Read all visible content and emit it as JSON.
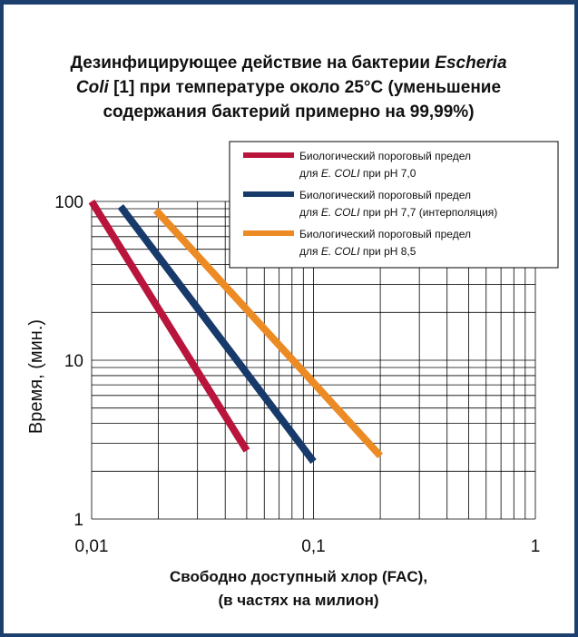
{
  "chart_data": {
    "type": "line",
    "title_lines": [
      [
        {
          "t": "Дезинфицирующее действие на бактерии ",
          "i": false
        },
        {
          "t": "Escheria",
          "i": true
        }
      ],
      [
        {
          "t": "Coli",
          "i": true
        },
        {
          "t": " [1] при температуре около 25°C (уменьшение",
          "i": false
        }
      ],
      [
        {
          "t": "содержания бактерий примерно на 99,99%)",
          "i": false
        }
      ]
    ],
    "xlabel_lines": [
      "Свободно доступный хлор (FAC),",
      "(в частях на милион)"
    ],
    "ylabel": "Время, (мин.)",
    "x_scale": "log",
    "y_scale": "log",
    "xlim": [
      0.01,
      1
    ],
    "ylim": [
      1,
      100
    ],
    "x_ticks": [
      {
        "v": 0.01,
        "label": "0,01"
      },
      {
        "v": 0.1,
        "label": "0,1"
      },
      {
        "v": 1,
        "label": "1"
      }
    ],
    "y_ticks": [
      {
        "v": 1,
        "label": "1"
      },
      {
        "v": 10,
        "label": "10"
      },
      {
        "v": 100,
        "label": "100"
      }
    ],
    "grid": true,
    "legend_position": "top-right",
    "series": [
      {
        "color": "#b8143c",
        "legend_lines": [
          [
            {
              "t": "Биологический пороговый предел",
              "i": false
            }
          ],
          [
            {
              "t": "для ",
              "i": false
            },
            {
              "t": "E. COLI",
              "i": true
            },
            {
              "t": " при pH 7,0",
              "i": false
            }
          ]
        ],
        "points": [
          [
            0.01,
            100
          ],
          [
            0.05,
            2.7
          ]
        ]
      },
      {
        "color": "#173a6b",
        "legend_lines": [
          [
            {
              "t": "Биологический пороговый предел",
              "i": false
            }
          ],
          [
            {
              "t": "для ",
              "i": false
            },
            {
              "t": "E. COLI",
              "i": true
            },
            {
              "t": " при pH 7,7 (интерполяция)",
              "i": false
            }
          ]
        ],
        "points": [
          [
            0.0135,
            93
          ],
          [
            0.1,
            2.3
          ]
        ]
      },
      {
        "color": "#ec8a24",
        "legend_lines": [
          [
            {
              "t": "Биологический пороговый предел",
              "i": false
            }
          ],
          [
            {
              "t": "для ",
              "i": false
            },
            {
              "t": "E. COLI",
              "i": true
            },
            {
              "t": " при pH 8,5",
              "i": false
            }
          ]
        ],
        "points": [
          [
            0.0195,
            88
          ],
          [
            0.2,
            2.5
          ]
        ]
      }
    ]
  }
}
